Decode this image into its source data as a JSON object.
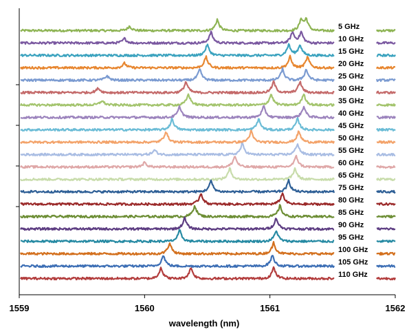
{
  "chart_data": {
    "type": "line",
    "title": "",
    "xlabel": "wavelength (nm)",
    "ylabel": "",
    "xlim": [
      1559,
      1562
    ],
    "xticks": [
      "1559",
      "1560",
      "1561",
      "1562"
    ],
    "grid": false,
    "legend": "right (labels beside traces)",
    "series": [
      {
        "name": "5 GHz",
        "color": "#8eb454",
        "peaks": [
          1559.88,
          1560.58,
          1561.25,
          1561.29
        ]
      },
      {
        "name": "10 GHz",
        "color": "#7a58a0",
        "peaks": [
          1559.84,
          1560.53,
          1561.18,
          1561.25
        ]
      },
      {
        "name": "15 GHz",
        "color": "#3ca3bf",
        "peaks": [
          1560.5,
          1561.15,
          1561.24
        ]
      },
      {
        "name": "20 GHz",
        "color": "#e7862f",
        "peaks": [
          1559.84,
          1560.49,
          1561.16,
          1561.3
        ]
      },
      {
        "name": "25 GHz",
        "color": "#7b9bd1",
        "peaks": [
          1559.7,
          1560.44,
          1561.1,
          1561.29
        ]
      },
      {
        "name": "30 GHz",
        "color": "#c46a6a",
        "peaks": [
          1559.63,
          1560.33,
          1561.03,
          1561.24
        ]
      },
      {
        "name": "35 GHz",
        "color": "#a3c46d",
        "peaks": [
          1559.66,
          1560.35,
          1561.01,
          1561.27
        ]
      },
      {
        "name": "40 GHz",
        "color": "#9c84bd",
        "peaks": [
          1560.28,
          1560.95,
          1561.27
        ]
      },
      {
        "name": "45 GHz",
        "color": "#6bbcd6",
        "peaks": [
          1560.22,
          1560.91,
          1561.22
        ]
      },
      {
        "name": "50 GHz",
        "color": "#f3a36a",
        "peaks": [
          1560.17,
          1560.85,
          1561.23
        ]
      },
      {
        "name": "55 GHz",
        "color": "#a9bde3",
        "peaks": [
          1560.08,
          1560.78,
          1561.22
        ]
      },
      {
        "name": "60 GHz",
        "color": "#dfa8a8",
        "peaks": [
          1560.0,
          1560.72,
          1561.21
        ]
      },
      {
        "name": "65 GHz",
        "color": "#c8dcab",
        "peaks": [
          1560.68,
          1561.2
        ]
      },
      {
        "name": "75 GHz",
        "color": "#2e5f96",
        "peaks": [
          1560.53,
          1561.15
        ]
      },
      {
        "name": "80 GHz",
        "color": "#9b2a2a",
        "peaks": [
          1560.45,
          1561.1
        ]
      },
      {
        "name": "85 GHz",
        "color": "#6d8e35",
        "peaks": [
          1560.4,
          1561.08
        ]
      },
      {
        "name": "90 GHz",
        "color": "#5d3d82",
        "peaks": [
          1560.32,
          1561.05
        ]
      },
      {
        "name": "95 GHz",
        "color": "#268aa3",
        "peaks": [
          1560.28,
          1561.05
        ]
      },
      {
        "name": "100 GHz",
        "color": "#d3701e",
        "peaks": [
          1560.2,
          1561.03
        ]
      },
      {
        "name": "105 GHz",
        "color": "#3d6fb5",
        "peaks": [
          1560.15,
          1561.02
        ]
      },
      {
        "name": "110 GHz",
        "color": "#b23c3c",
        "peaks": [
          1560.13,
          1560.37,
          1561.03
        ]
      }
    ]
  }
}
